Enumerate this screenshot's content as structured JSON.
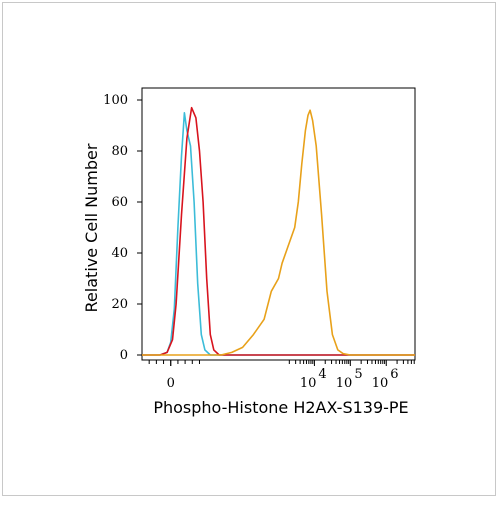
{
  "chart_data": {
    "type": "line",
    "title": "",
    "xlabel": "Phospho-Histone H2AX-S139-PE",
    "ylabel": "Relative Cell Number",
    "ylim": [
      0,
      100
    ],
    "yticks": [
      0,
      20,
      40,
      60,
      80,
      100
    ],
    "x_scale": "biexponential (log above ~10^3)",
    "xlim_log10": [
      -0.8,
      6.8
    ],
    "xticks": [
      {
        "label": "0",
        "base": "0",
        "exp": "",
        "pos": 0
      },
      {
        "label": "10^4",
        "base": "10",
        "exp": "4",
        "pos": 4
      },
      {
        "label": "10^5",
        "base": "10",
        "exp": "5",
        "pos": 5
      },
      {
        "label": "10^6",
        "base": "10",
        "exp": "6",
        "pos": 6
      }
    ],
    "grid": false,
    "legend": "none",
    "series": [
      {
        "color": "#3cbcd8",
        "points": [
          [
            -0.8,
            0
          ],
          [
            -0.3,
            0
          ],
          [
            -0.1,
            1
          ],
          [
            0.0,
            5
          ],
          [
            0.1,
            18
          ],
          [
            0.2,
            50
          ],
          [
            0.3,
            78
          ],
          [
            0.38,
            95
          ],
          [
            0.45,
            88
          ],
          [
            0.55,
            82
          ],
          [
            0.65,
            60
          ],
          [
            0.75,
            28
          ],
          [
            0.85,
            8
          ],
          [
            0.95,
            2
          ],
          [
            1.1,
            0
          ],
          [
            6.8,
            0
          ]
        ]
      },
      {
        "color": "#d8141e",
        "points": [
          [
            -0.8,
            0
          ],
          [
            -0.3,
            0
          ],
          [
            -0.1,
            1
          ],
          [
            0.05,
            6
          ],
          [
            0.15,
            20
          ],
          [
            0.3,
            55
          ],
          [
            0.45,
            85
          ],
          [
            0.58,
            97
          ],
          [
            0.7,
            93
          ],
          [
            0.8,
            80
          ],
          [
            0.9,
            60
          ],
          [
            1.0,
            30
          ],
          [
            1.1,
            8
          ],
          [
            1.2,
            2
          ],
          [
            1.35,
            0
          ],
          [
            6.8,
            0
          ]
        ]
      },
      {
        "color": "#e8a11a",
        "points": [
          [
            -0.8,
            0
          ],
          [
            1.4,
            0
          ],
          [
            1.7,
            1
          ],
          [
            2.0,
            3
          ],
          [
            2.3,
            8
          ],
          [
            2.6,
            14
          ],
          [
            2.8,
            25
          ],
          [
            3.0,
            30
          ],
          [
            3.1,
            36
          ],
          [
            3.25,
            42
          ],
          [
            3.45,
            50
          ],
          [
            3.55,
            60
          ],
          [
            3.65,
            75
          ],
          [
            3.75,
            88
          ],
          [
            3.82,
            94
          ],
          [
            3.88,
            96
          ],
          [
            3.95,
            92
          ],
          [
            4.05,
            82
          ],
          [
            4.2,
            55
          ],
          [
            4.35,
            25
          ],
          [
            4.5,
            8
          ],
          [
            4.65,
            2
          ],
          [
            4.8,
            0.5
          ],
          [
            5.0,
            0
          ],
          [
            6.8,
            0
          ]
        ]
      }
    ]
  }
}
